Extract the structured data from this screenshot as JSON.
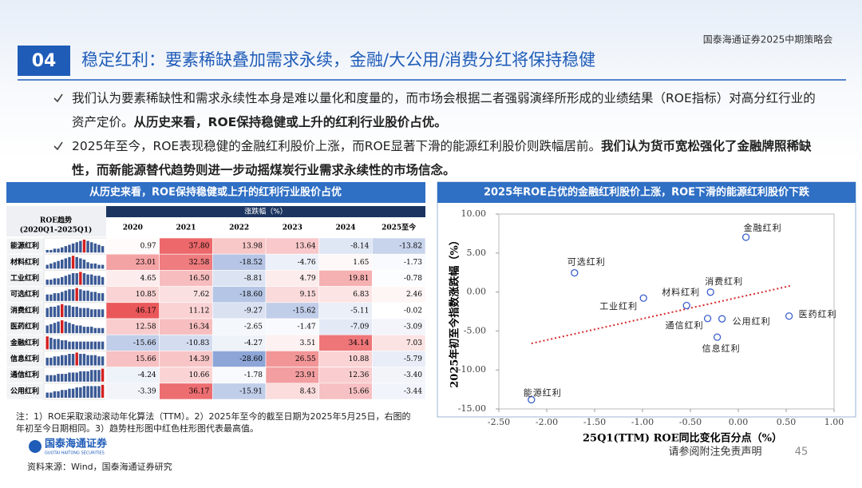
{
  "header": {
    "brand": "国泰海通证券2025中期策略会",
    "section_number": "04",
    "title": "稳定红利：要素稀缺叠加需求永续，金融/大公用/消费分红将保持稳健"
  },
  "bullets": [
    {
      "text": "我们认为要素稀缺性和需求永续性本身是难以量化和度量的，而市场会根据二者强弱演绎所形成的业绩结果（ROE指标）对高分红行业的资产定价。",
      "bold": "从历史来看，ROE保持稳健或上升的红利行业股价占优。"
    },
    {
      "text": "2025年至今，ROE表现稳健的金融红利股价上涨，而ROE显著下滑的能源红利股价则跌幅居前。",
      "bold": "我们认为货币宽松强化了金融牌照稀缺性，而新能源替代趋势则进一步动摇煤炭行业需求永续性的市场信念。"
    }
  ],
  "table": {
    "title": "从历史来看，ROE保持稳健或上升的红利行业股价占优",
    "trend_header": [
      "ROE趋势",
      "(2020Q1-2025Q1)"
    ],
    "group_header": "涨跌幅（%）",
    "columns": [
      "2020",
      "2021",
      "2022",
      "2023",
      "2024",
      "2025至今"
    ],
    "rows": [
      {
        "name": "能源红利",
        "trend": [
          2,
          2,
          3,
          3,
          4,
          5,
          6,
          7,
          8,
          9,
          10,
          9,
          8,
          7,
          6,
          5
        ],
        "values": [
          "0.97",
          "37.80",
          "13.98",
          "13.64",
          "-8.14",
          "-13.82"
        ]
      },
      {
        "name": "材料红利",
        "trend": [
          3,
          4,
          5,
          6,
          7,
          8,
          9,
          10,
          9,
          8,
          7,
          5,
          4,
          4,
          3,
          3
        ],
        "values": [
          "23.01",
          "32.58",
          "-18.52",
          "-4.76",
          "1.65",
          "-1.73"
        ]
      },
      {
        "name": "工业红利",
        "trend": [
          4,
          4,
          5,
          5,
          6,
          7,
          8,
          9,
          9,
          10,
          9,
          8,
          8,
          7,
          7,
          6
        ],
        "values": [
          "4.65",
          "16.50",
          "-8.81",
          "4.79",
          "19.81",
          "-0.78"
        ]
      },
      {
        "name": "可选红利",
        "trend": [
          5,
          5,
          6,
          6,
          7,
          8,
          9,
          9,
          10,
          9,
          8,
          8,
          7,
          7,
          6,
          6
        ],
        "values": [
          "10.85",
          "7.62",
          "-18.60",
          "9.15",
          "6.83",
          "2.46"
        ]
      },
      {
        "name": "消费红利",
        "trend": [
          7,
          8,
          8,
          9,
          10,
          9,
          9,
          8,
          8,
          7,
          7,
          7,
          6,
          6,
          6,
          6
        ],
        "values": [
          "46.17",
          "11.12",
          "-9.27",
          "-15.62",
          "-5.11",
          "-0.02"
        ]
      },
      {
        "name": "医药红利",
        "trend": [
          6,
          7,
          8,
          9,
          10,
          9,
          8,
          7,
          6,
          6,
          5,
          5,
          5,
          4,
          4,
          4
        ],
        "values": [
          "12.58",
          "16.34",
          "-2.65",
          "-1.47",
          "-7.09",
          "-3.09"
        ]
      },
      {
        "name": "金融红利",
        "trend": [
          10,
          9,
          8,
          8,
          7,
          7,
          6,
          6,
          6,
          6,
          6,
          6,
          6,
          6,
          6,
          6
        ],
        "values": [
          "-15.66",
          "-10.83",
          "-4.27",
          "3.51",
          "34.14",
          "7.03"
        ]
      },
      {
        "name": "信息红利",
        "trend": [
          6,
          6,
          7,
          7,
          8,
          8,
          9,
          9,
          10,
          9,
          9,
          8,
          8,
          8,
          7,
          7
        ],
        "values": [
          "15.66",
          "14.39",
          "-28.60",
          "26.55",
          "10.88",
          "-5.79"
        ]
      },
      {
        "name": "通信红利",
        "trend": [
          5,
          5,
          5,
          6,
          6,
          6,
          7,
          7,
          7,
          8,
          8,
          8,
          9,
          9,
          9,
          10
        ],
        "values": [
          "-4.24",
          "10.66",
          "-1.78",
          "23.91",
          "12.36",
          "-3.40"
        ]
      },
      {
        "name": "公用红利",
        "trend": [
          4,
          4,
          5,
          5,
          6,
          6,
          7,
          7,
          8,
          8,
          9,
          9,
          9,
          9,
          9,
          10
        ],
        "values": [
          "-3.39",
          "36.17",
          "-15.91",
          "8.43",
          "15.66",
          "-3.44"
        ]
      }
    ]
  },
  "chart_data": {
    "type": "scatter",
    "title": "2025年ROE占优的金融红利股价上涨，ROE下滑的能源红利股价下跌",
    "x_label": "25Q1(TTM) ROE同比变化百分点（%）",
    "y_label": "2025年初至今指数涨跌幅（%）",
    "color": "#3a5fcd",
    "xlim": [
      -2.5,
      1.0
    ],
    "xticks": [
      {
        "value": -2.5,
        "label": "-2.50"
      },
      {
        "value": -2,
        "label": "-2.00"
      },
      {
        "value": -1.5,
        "label": "-1.50"
      },
      {
        "value": -1,
        "label": "-1.00"
      },
      {
        "value": -0.5,
        "label": "-0.50"
      },
      {
        "value": 0,
        "label": "0.00"
      },
      {
        "value": 0.5,
        "label": "0.50"
      },
      {
        "value": 1,
        "label": "1.00"
      }
    ],
    "ylim": [
      -15,
      10
    ],
    "yticks": [
      {
        "value": -15,
        "label": "-15.00"
      },
      {
        "value": -10,
        "label": "-10.00"
      },
      {
        "value": -5,
        "label": "-5.00"
      },
      {
        "value": 0,
        "label": "0.00"
      },
      {
        "value": 5,
        "label": "5.00"
      },
      {
        "value": 10,
        "label": "10.00"
      }
    ],
    "points": [
      {
        "name": "能源红利",
        "x": -2.16,
        "y": -13.82
      },
      {
        "name": "材料红利",
        "x": -0.54,
        "y": -1.73
      },
      {
        "name": "工业红利",
        "x": -0.99,
        "y": -0.78
      },
      {
        "name": "可选红利",
        "x": -1.71,
        "y": 2.46
      },
      {
        "name": "消费红利",
        "x": -0.29,
        "y": -0.02
      },
      {
        "name": "医药红利",
        "x": 0.53,
        "y": -3.09
      },
      {
        "name": "金融红利",
        "x": 0.08,
        "y": 7.03
      },
      {
        "name": "信息红利",
        "x": -0.22,
        "y": -5.79
      },
      {
        "name": "通信红利",
        "x": -0.32,
        "y": -3.4
      },
      {
        "name": "公用红利",
        "x": -0.17,
        "y": -3.44
      }
    ],
    "trendline": {
      "color": "#d42a2a",
      "x": [
        -2.16,
        0.54
      ],
      "y": [
        -6.6,
        0.78
      ]
    }
  },
  "footer": {
    "note": "注：1）ROE采取滚动滚动年化算法（TTM）。2）2025年至今的截至日期为2025年5月25日，右图的年初至今日期相同。3）趋势柱形图中红色柱形图代表最高值。",
    "logo": "国泰海通证券",
    "logo_en": "GUOTAI HAITONG SECURITIES",
    "source": "资料来源：Wind，国泰海通证券研究",
    "disclaimer": "请参阅附注免责声明",
    "page": "45"
  }
}
